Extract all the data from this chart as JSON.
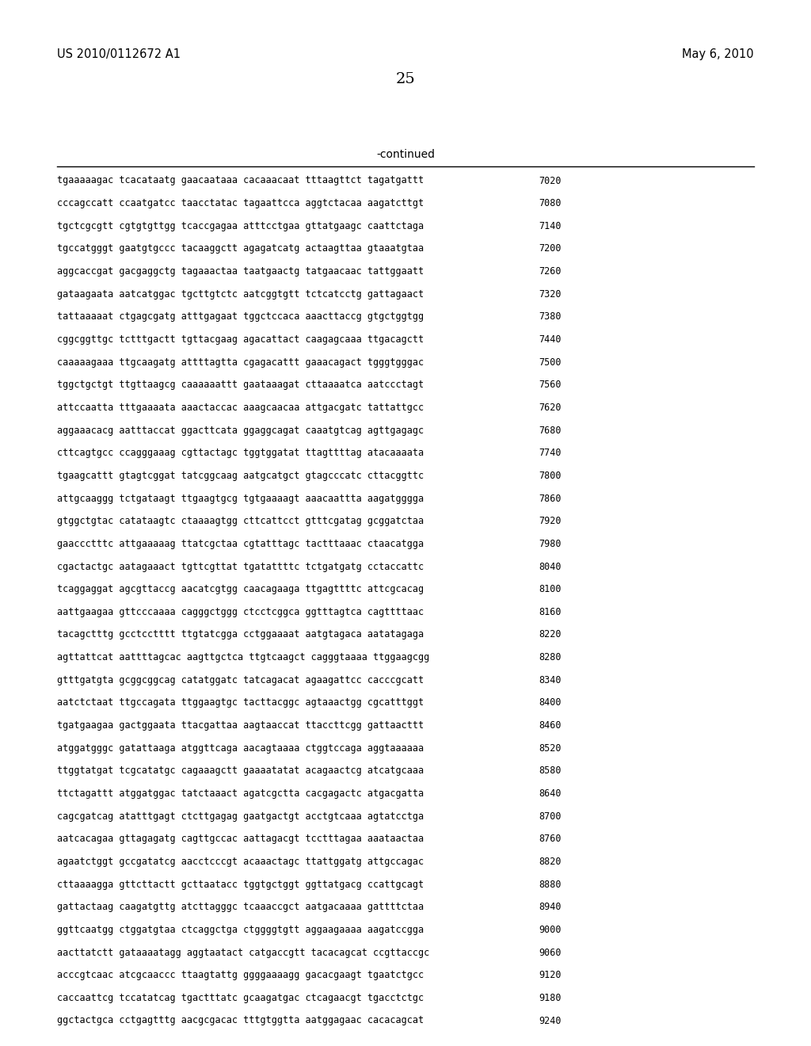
{
  "header_left": "US 2010/0112672 A1",
  "header_right": "May 6, 2010",
  "page_number": "25",
  "continued_label": "-continued",
  "background_color": "#ffffff",
  "text_color": "#000000",
  "font_size_header": 10.5,
  "font_size_page": 14,
  "font_size_continued": 10,
  "font_size_sequence": 8.5,
  "sequence_lines": [
    [
      "tgaaaaagac tcacataatg gaacaataaa cacaaacaat tttaagttct tagatgattt",
      "7020"
    ],
    [
      "cccagccatt ccaatgatcc taacctatac tagaattcca aggtctacaa aagatcttgt",
      "7080"
    ],
    [
      "tgctcgcgtt cgtgtgttgg tcaccgagaa atttcctgaa gttatgaagc caattctaga",
      "7140"
    ],
    [
      "tgccatgggt gaatgtgccc tacaaggctt agagatcatg actaagttaa gtaaatgtaa",
      "7200"
    ],
    [
      "aggcaccgat gacgaggctg tagaaactaa taatgaactg tatgaacaac tattggaatt",
      "7260"
    ],
    [
      "gataagaata aatcatggac tgcttgtctc aatcggtgtt tctcatcctg gattagaact",
      "7320"
    ],
    [
      "tattaaaaat ctgagcgatg atttgagaat tggctccaca aaacttaccg gtgctggtgg",
      "7380"
    ],
    [
      "cggcggttgc tctttgactt tgttacgaag agacattact caagagcaaa ttgacagctt",
      "7440"
    ],
    [
      "caaaaagaaa ttgcaagatg attttagtta cgagacattt gaaacagact tgggtgggac",
      "7500"
    ],
    [
      "tggctgctgt ttgttaagcg caaaaaattt gaataaagat cttaaaatca aatccctagt",
      "7560"
    ],
    [
      "attccaatta tttgaaaata aaactaccac aaagcaacaa attgacgatc tattattgcc",
      "7620"
    ],
    [
      "aggaaacacg aatttaccat ggacttcata ggaggcagat caaatgtcag agttgagagc",
      "7680"
    ],
    [
      "cttcagtgcc ccagggaaag cgttactagc tggtggatat ttagttttag atacaaaata",
      "7740"
    ],
    [
      "tgaagcattt gtagtcggat tatcggcaag aatgcatgct gtagcccatc cttacggttc",
      "7800"
    ],
    [
      "attgcaaggg tctgataagt ttgaagtgcg tgtgaaaagt aaacaattta aagatgggga",
      "7860"
    ],
    [
      "gtggctgtac catataagtc ctaaaagtgg cttcattcct gtttcgatag gcggatctaa",
      "7920"
    ],
    [
      "gaaccctttc attgaaaaag ttatcgctaa cgtatttagc tactttaaac ctaacatgga",
      "7980"
    ],
    [
      "cgactactgc aatagaaact tgttcgttat tgatattttc tctgatgatg cctaccattc",
      "8040"
    ],
    [
      "tcaggaggat agcgttaccg aacatcgtgg caacagaaga ttgagttttc attcgcacag",
      "8100"
    ],
    [
      "aattgaagaa gttcccaaaa cagggctggg ctcctcggca ggtttagtca cagttttaac",
      "8160"
    ],
    [
      "tacagctttg gcctcctttt ttgtatcgga cctggaaaat aatgtagaca aatatagaga",
      "8220"
    ],
    [
      "agttattcat aattttagcac aagttgctca ttgtcaagct cagggtaaaa ttggaagcgg",
      "8280"
    ],
    [
      "gtttgatgta gcggcggcag catatggatc tatcagacat agaagattcc cacccgcatt",
      "8340"
    ],
    [
      "aatctctaat ttgccagata ttggaagtgc tacttacggc agtaaactgg cgcatttggt",
      "8400"
    ],
    [
      "tgatgaagaa gactggaata ttacgattaa aagtaaccat ttaccttcgg gattaacttt",
      "8460"
    ],
    [
      "atggatgggc gatattaaga atggttcaga aacagtaaaa ctggtccaga aggtaaaaaa",
      "8520"
    ],
    [
      "ttggtatgat tcgcatatgc cagaaagctt gaaaatatat acagaactcg atcatgcaaa",
      "8580"
    ],
    [
      "ttctagattt atggatggac tatctaaact agatcgctta cacgagactc atgacgatta",
      "8640"
    ],
    [
      "cagcgatcag atatttgagt ctcttgagag gaatgactgt acctgtcaaa agtatcctga",
      "8700"
    ],
    [
      "aatcacagaa gttagagatg cagttgccac aattagacgt tcctttagaa aaataactaa",
      "8760"
    ],
    [
      "agaatctggt gccgatatcg aacctcccgt acaaactagc ttattggatg attgccagac",
      "8820"
    ],
    [
      "cttaaaagga gttcttactt gcttaatacc tggtgctggt ggttatgacg ccattgcagt",
      "8880"
    ],
    [
      "gattactaag caagatgttg atcttagggc tcaaaccgct aatgacaaaa gattttctaa",
      "8940"
    ],
    [
      "ggttcaatgg ctggatgtaa ctcaggctga ctggggtgtt aggaagaaaa aagatccgga",
      "9000"
    ],
    [
      "aacttatctt gataaaatagg aggtaatact catgaccgtt tacacagcat ccgttaccgc",
      "9060"
    ],
    [
      "acccgtcaac atcgcaaccc ttaagtattg ggggaaaagg gacacgaagt tgaatctgcc",
      "9120"
    ],
    [
      "caccaattcg tccatatcag tgactttatc gcaagatgac ctcagaacgt tgacctctgc",
      "9180"
    ],
    [
      "ggctactgca cctgagtttg aacgcgacac tttgtggtta aatggagaac cacacagcat",
      "9240"
    ]
  ]
}
